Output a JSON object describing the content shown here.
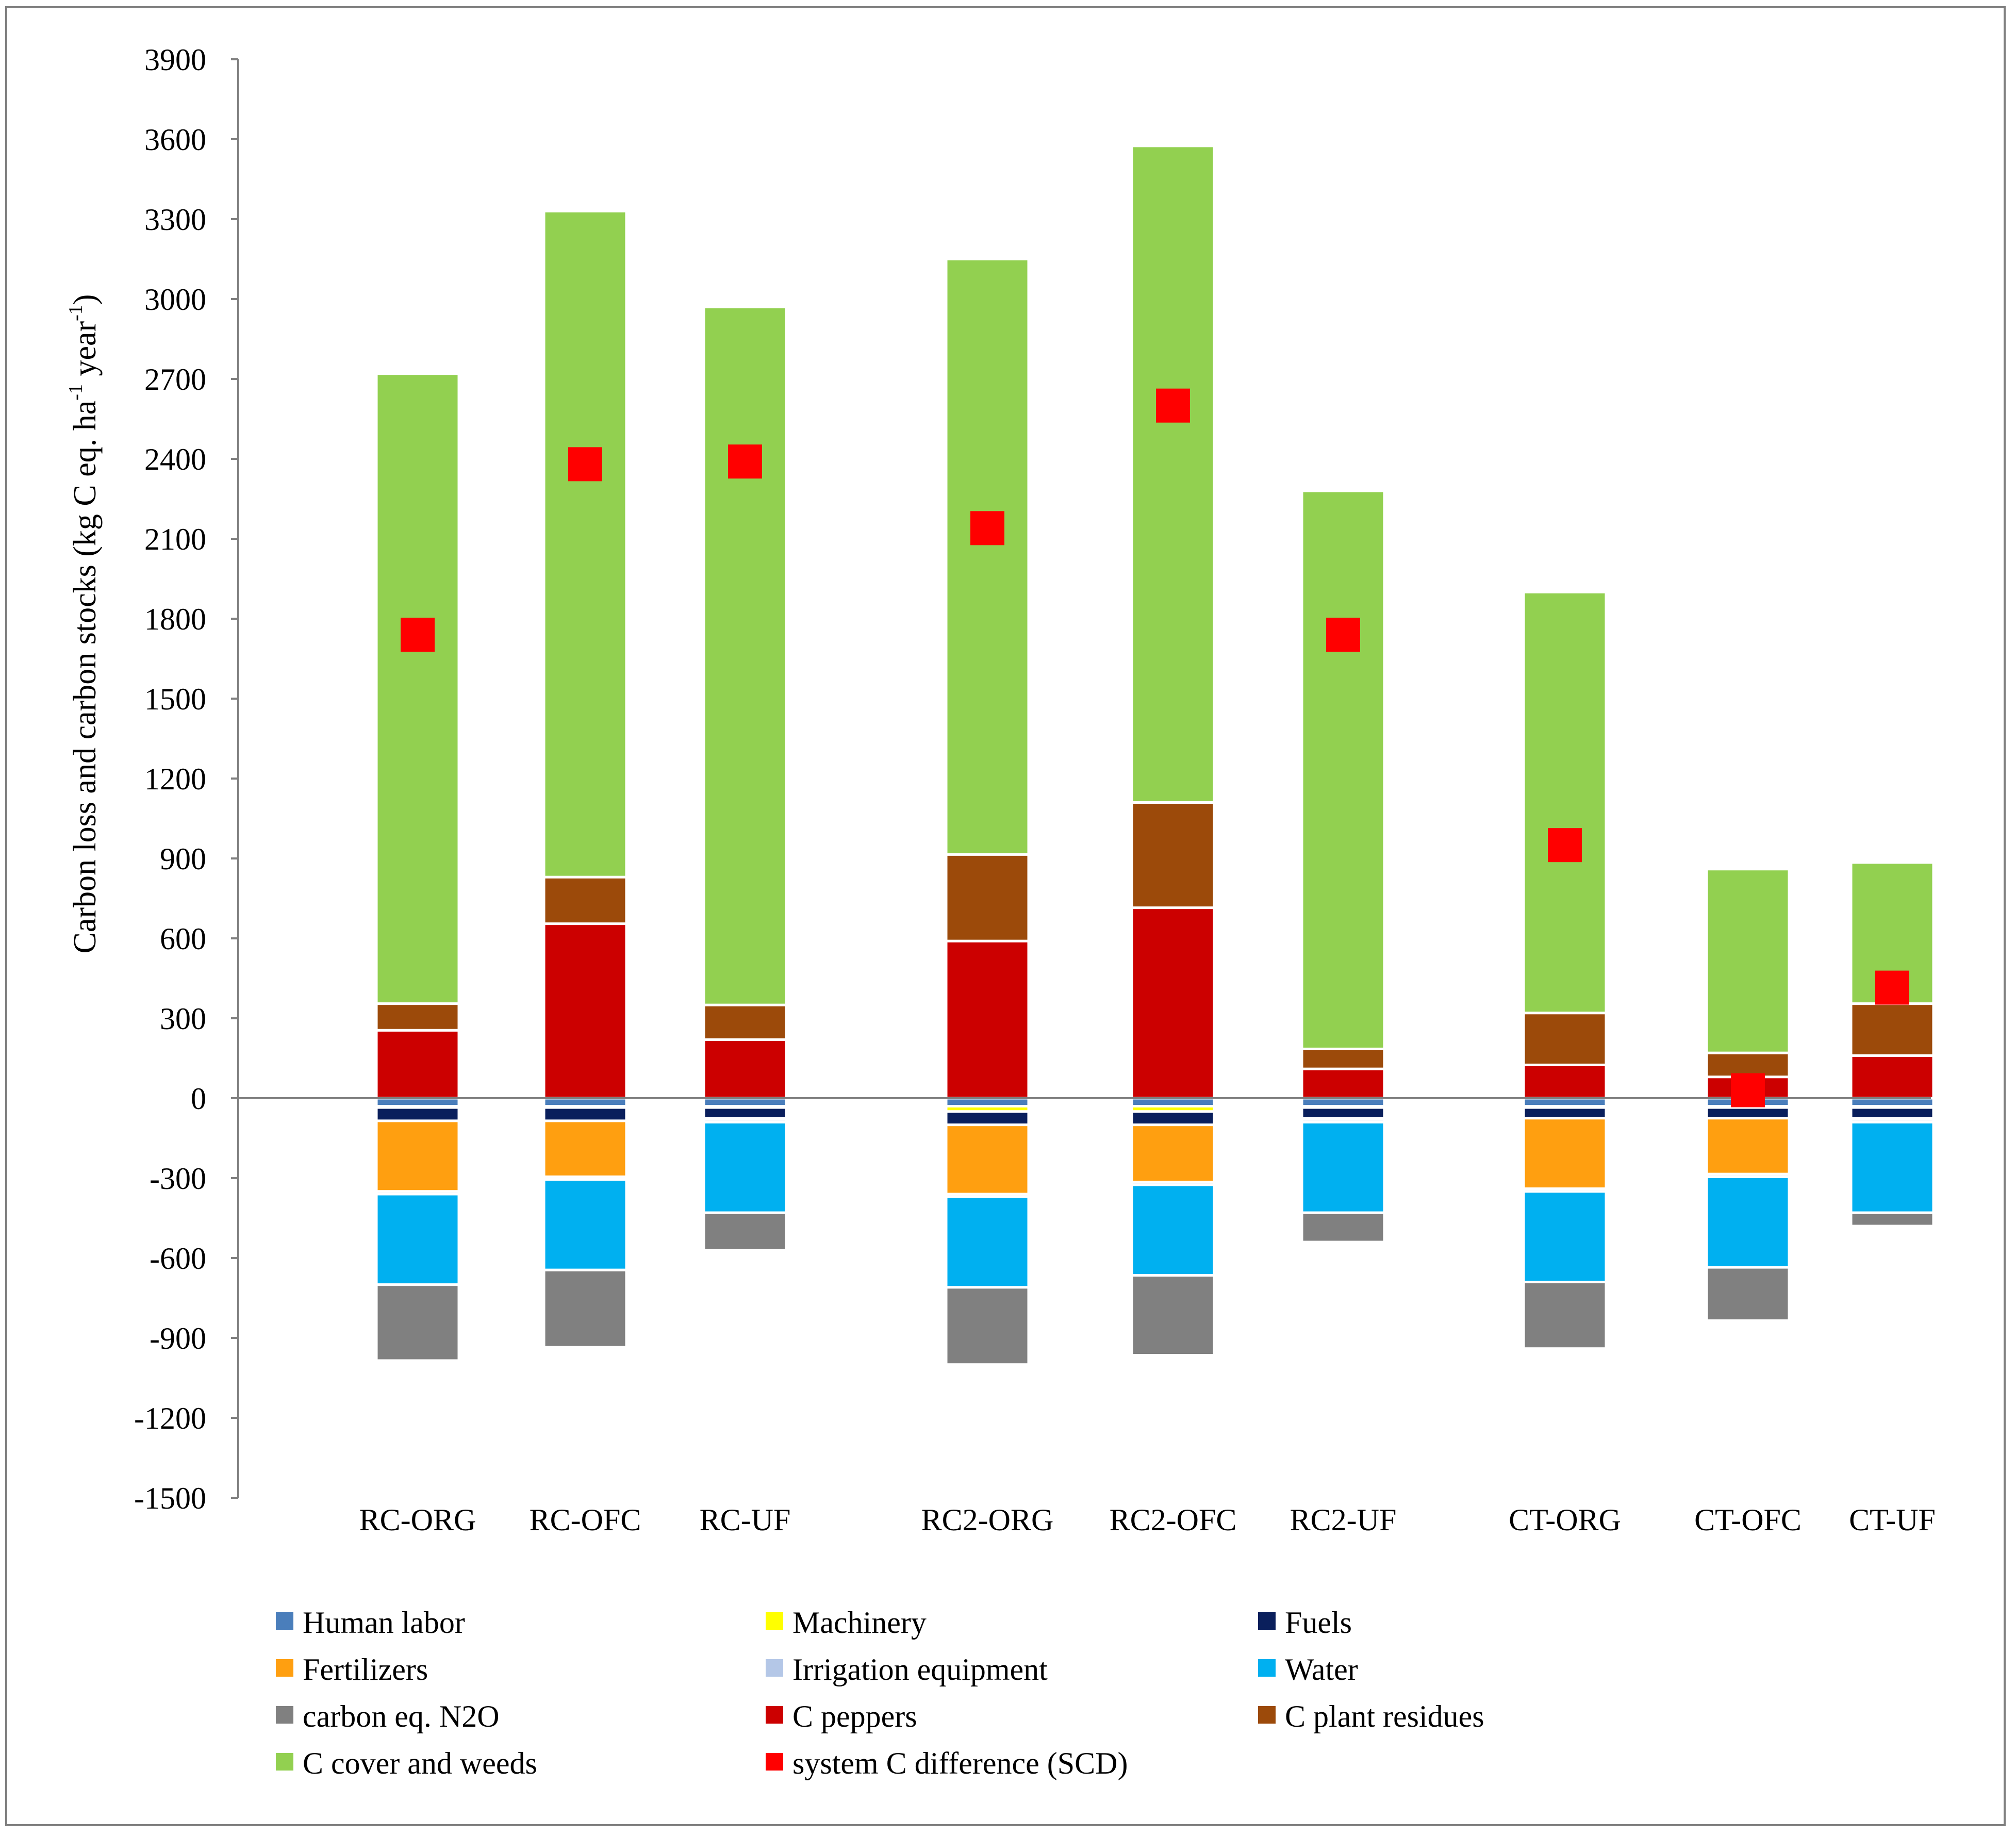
{
  "chart_data": {
    "type": "bar",
    "stacked": true,
    "ylabel": "Carbon loss and carbon stocks (kg C eq. ha⁻¹ year⁻¹)",
    "ylim": [
      -1500,
      3900
    ],
    "ytick_step": 300,
    "grid": false,
    "legend_position": "bottom",
    "category_groups": [
      [
        "RC-ORG",
        "RC-OFC",
        "RC-UF"
      ],
      [
        "RC2-ORG",
        "RC2-OFC",
        "RC2-UF"
      ],
      [
        "CT-ORG",
        "CT-OFC",
        "CT-UF"
      ]
    ],
    "categories": [
      "RC-ORG",
      "RC-OFC",
      "RC-UF",
      "RC2-ORG",
      "RC2-OFC",
      "RC2-UF",
      "CT-ORG",
      "CT-OFC",
      "CT-UF"
    ],
    "series": [
      {
        "name": "Human labor",
        "color": "#4a7ebb",
        "values": [
          -30,
          -30,
          -30,
          -30,
          -30,
          -30,
          -30,
          -30,
          -30
        ]
      },
      {
        "name": "Machinery",
        "color": "#ffff00",
        "values": [
          -5,
          -5,
          -5,
          -20,
          -20,
          -5,
          -5,
          -5,
          -5
        ]
      },
      {
        "name": "Fuels",
        "color": "#0a1f5c",
        "values": [
          -50,
          -50,
          -40,
          -50,
          -50,
          -40,
          -40,
          -40,
          -40
        ]
      },
      {
        "name": "Fertilizers",
        "color": "#ff9f10",
        "values": [
          -265,
          -210,
          -5,
          -260,
          -215,
          -5,
          -265,
          -210,
          -5
        ]
      },
      {
        "name": "Irrigation equipment",
        "color": "#b4c7e7",
        "values": [
          -10,
          -10,
          -10,
          -10,
          -10,
          -10,
          -10,
          -10,
          -10
        ]
      },
      {
        "name": "Water",
        "color": "#00b0f0",
        "values": [
          -340,
          -340,
          -340,
          -340,
          -340,
          -340,
          -340,
          -340,
          -340
        ]
      },
      {
        "name": "carbon eq. N2O",
        "color": "#808080",
        "values": [
          -285,
          -290,
          -140,
          -290,
          -300,
          -110,
          -250,
          -200,
          -50
        ]
      },
      {
        "name": "C peppers",
        "color": "#cc0000",
        "values": [
          255,
          655,
          220,
          590,
          715,
          110,
          125,
          80,
          160
        ]
      },
      {
        "name": "C plant residues",
        "color": "#9c4a0a",
        "values": [
          100,
          175,
          130,
          325,
          395,
          75,
          195,
          90,
          195
        ]
      },
      {
        "name": "C cover and weeds",
        "color": "#92d050",
        "values": [
          2365,
          2500,
          2620,
          2235,
          2465,
          2095,
          1580,
          690,
          530
        ]
      }
    ],
    "scatter_series": {
      "name": "system C difference (SCD)",
      "color": "#ff0000",
      "marker": "square",
      "values": [
        1740,
        2380,
        2390,
        2140,
        2600,
        1740,
        950,
        30,
        415
      ]
    },
    "legend": [
      "Human labor",
      "Machinery",
      "Fuels",
      "Fertilizers",
      "Irrigation equipment",
      "Water",
      "carbon eq. N2O",
      "C peppers",
      "C plant residues",
      "C cover and weeds",
      "system C difference (SCD)"
    ]
  }
}
